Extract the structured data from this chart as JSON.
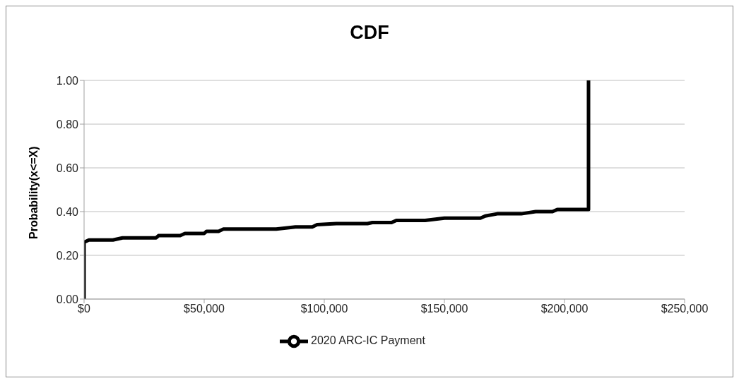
{
  "chart_data": {
    "type": "line",
    "title": "CDF",
    "ylabel": "Probability(x<=X)",
    "x": [
      0,
      0,
      2000,
      12000,
      16000,
      30000,
      31000,
      40000,
      42000,
      50000,
      51000,
      56000,
      58000,
      80000,
      88000,
      95000,
      97000,
      105000,
      118000,
      120000,
      128000,
      130000,
      142000,
      150000,
      165000,
      167000,
      172000,
      182000,
      188000,
      195000,
      197000,
      210000,
      210000
    ],
    "series": [
      {
        "name": "2020 ARC-IC Payment",
        "color": "#000000",
        "values": [
          0,
          0.26,
          0.27,
          0.27,
          0.28,
          0.28,
          0.29,
          0.29,
          0.3,
          0.3,
          0.31,
          0.31,
          0.32,
          0.32,
          0.33,
          0.33,
          0.34,
          0.345,
          0.345,
          0.35,
          0.35,
          0.36,
          0.36,
          0.37,
          0.37,
          0.38,
          0.39,
          0.39,
          0.4,
          0.4,
          0.41,
          0.41,
          1.0
        ]
      }
    ],
    "xlim": [
      0,
      250000
    ],
    "xticks": [
      {
        "value": 0,
        "label": "$0"
      },
      {
        "value": 50000,
        "label": "$50,000"
      },
      {
        "value": 100000,
        "label": "$100,000"
      },
      {
        "value": 150000,
        "label": "$150,000"
      },
      {
        "value": 200000,
        "label": "$200,000"
      },
      {
        "value": 250000,
        "label": "$250,000"
      }
    ],
    "ylim": [
      0,
      1
    ],
    "yticks": [
      {
        "value": 0,
        "label": "0.00"
      },
      {
        "value": 0.2,
        "label": "0.20"
      },
      {
        "value": 0.4,
        "label": "0.40"
      },
      {
        "value": 0.6,
        "label": "0.60"
      },
      {
        "value": 0.8,
        "label": "0.80"
      },
      {
        "value": 1,
        "label": "1.00"
      }
    ],
    "grid": "y",
    "legend": "bottom",
    "marker": "none",
    "line_style": "solid"
  }
}
